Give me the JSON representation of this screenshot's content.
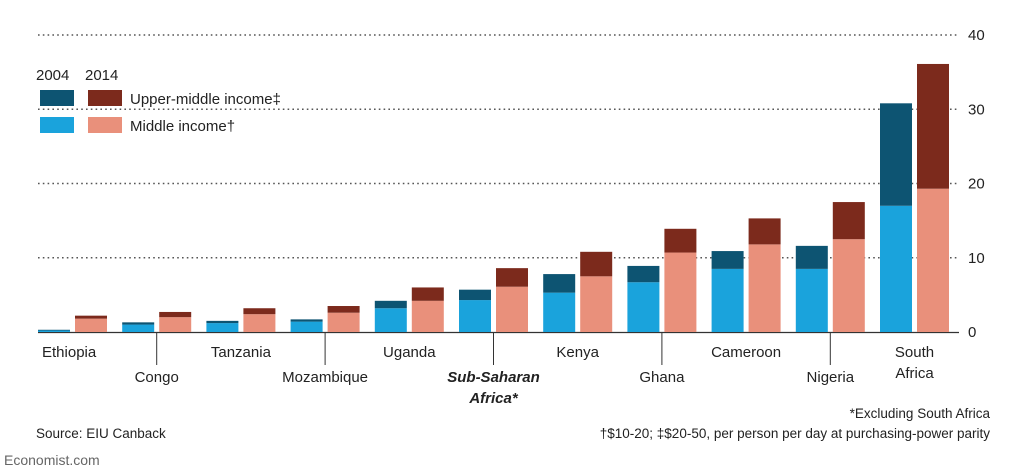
{
  "chart_data": {
    "type": "bar",
    "categories": [
      "Ethiopia",
      "Congo",
      "Tanzania",
      "Mozambique",
      "Uganda",
      "Sub-Saharan Africa*",
      "Kenya",
      "Ghana",
      "Cameroon",
      "Nigeria",
      "South Africa"
    ],
    "years": [
      "2004",
      "2014"
    ],
    "series": [
      {
        "name": "Middle income†",
        "year": "2004",
        "values": [
          0.2,
          1.0,
          1.2,
          1.4,
          3.2,
          4.3,
          5.3,
          6.7,
          8.5,
          8.5,
          17.0
        ]
      },
      {
        "name": "Upper-middle income‡",
        "year": "2004",
        "values": [
          0.1,
          0.3,
          0.3,
          0.3,
          1.0,
          1.4,
          2.5,
          2.2,
          2.4,
          3.1,
          13.8
        ]
      },
      {
        "name": "Middle income†",
        "year": "2014",
        "values": [
          1.8,
          2.0,
          2.4,
          2.6,
          4.2,
          6.1,
          7.5,
          10.7,
          11.8,
          12.5,
          19.3
        ]
      },
      {
        "name": "Upper-middle income‡",
        "year": "2014",
        "values": [
          0.4,
          0.7,
          0.8,
          0.9,
          1.8,
          2.5,
          3.3,
          3.2,
          3.5,
          5.0,
          16.8
        ]
      }
    ],
    "ylim": [
      0,
      40
    ],
    "yticks": [
      "0",
      "10",
      "20",
      "30",
      "40"
    ],
    "y_axis_side": "right",
    "grid": "dotted",
    "legend": {
      "position": "top-left",
      "year_labels": [
        "2004",
        "2014"
      ],
      "entries": [
        "Upper-middle income‡",
        "Middle income†"
      ]
    },
    "colors": {
      "upper_2004": "#0d5472",
      "middle_2004": "#1aa3dc",
      "upper_2014": "#7c2a1c",
      "middle_2014": "#e9907b"
    }
  },
  "footer": {
    "source": "Source: EIU Canback",
    "note1": "*Excluding South Africa",
    "note2": "†$10-20; ‡$20-50, per person per day at purchasing-power parity",
    "brand": "Economist.com"
  }
}
